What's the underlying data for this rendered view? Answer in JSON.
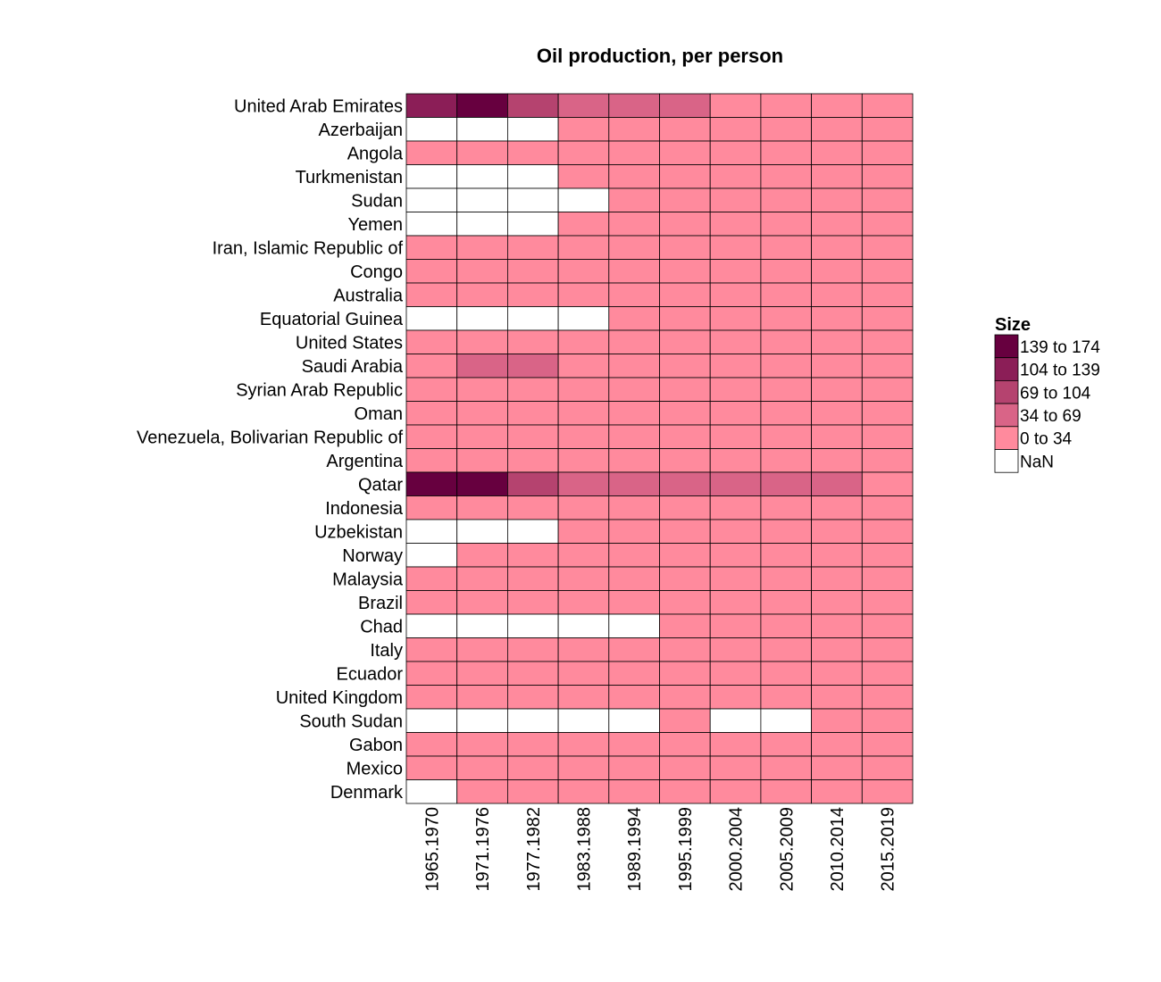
{
  "chart_data": {
    "type": "heatmap",
    "title": "Oil production, per person",
    "rows": [
      "United Arab Emirates",
      "Azerbaijan",
      "Angola",
      "Turkmenistan",
      "Sudan",
      "Yemen",
      "Iran, Islamic Republic of",
      "Congo",
      "Australia",
      "Equatorial Guinea",
      "United States",
      "Saudi Arabia",
      "Syrian Arab Republic",
      "Oman",
      "Venezuela, Bolivarian Republic of",
      "Argentina",
      "Qatar",
      "Indonesia",
      "Uzbekistan",
      "Norway",
      "Malaysia",
      "Brazil",
      "Chad",
      "Italy",
      "Ecuador",
      "United Kingdom",
      "South Sudan",
      "Gabon",
      "Mexico",
      "Denmark"
    ],
    "columns": [
      "1965.1970",
      "1971.1976",
      "1977.1982",
      "1983.1988",
      "1989.1994",
      "1995.1999",
      "2000.2004",
      "2005.2009",
      "2010.2014",
      "2015.2019"
    ],
    "bins": [
      {
        "label": "139 to 174",
        "color": "#67003f"
      },
      {
        "label": "104 to 139",
        "color": "#8b1e57"
      },
      {
        "label": "69 to 104",
        "color": "#b5436f"
      },
      {
        "label": "34 to 69",
        "color": "#d96487"
      },
      {
        "label": "0 to 34",
        "color": "#ff8a9d"
      },
      {
        "label": "NaN",
        "color": "#ffffff"
      }
    ],
    "legend_title": "Size",
    "legend_position": "right",
    "cells": [
      [
        1,
        0,
        2,
        3,
        3,
        3,
        4,
        4,
        4,
        4
      ],
      [
        5,
        5,
        5,
        4,
        4,
        4,
        4,
        4,
        4,
        4
      ],
      [
        4,
        4,
        4,
        4,
        4,
        4,
        4,
        4,
        4,
        4
      ],
      [
        5,
        5,
        5,
        4,
        4,
        4,
        4,
        4,
        4,
        4
      ],
      [
        5,
        5,
        5,
        5,
        4,
        4,
        4,
        4,
        4,
        4
      ],
      [
        5,
        5,
        5,
        4,
        4,
        4,
        4,
        4,
        4,
        4
      ],
      [
        4,
        4,
        4,
        4,
        4,
        4,
        4,
        4,
        4,
        4
      ],
      [
        4,
        4,
        4,
        4,
        4,
        4,
        4,
        4,
        4,
        4
      ],
      [
        4,
        4,
        4,
        4,
        4,
        4,
        4,
        4,
        4,
        4
      ],
      [
        5,
        5,
        5,
        5,
        4,
        4,
        4,
        4,
        4,
        4
      ],
      [
        4,
        4,
        4,
        4,
        4,
        4,
        4,
        4,
        4,
        4
      ],
      [
        4,
        3,
        3,
        4,
        4,
        4,
        4,
        4,
        4,
        4
      ],
      [
        4,
        4,
        4,
        4,
        4,
        4,
        4,
        4,
        4,
        4
      ],
      [
        4,
        4,
        4,
        4,
        4,
        4,
        4,
        4,
        4,
        4
      ],
      [
        4,
        4,
        4,
        4,
        4,
        4,
        4,
        4,
        4,
        4
      ],
      [
        4,
        4,
        4,
        4,
        4,
        4,
        4,
        4,
        4,
        4
      ],
      [
        0,
        0,
        2,
        3,
        3,
        3,
        3,
        3,
        3,
        4
      ],
      [
        4,
        4,
        4,
        4,
        4,
        4,
        4,
        4,
        4,
        4
      ],
      [
        5,
        5,
        5,
        4,
        4,
        4,
        4,
        4,
        4,
        4
      ],
      [
        5,
        4,
        4,
        4,
        4,
        4,
        4,
        4,
        4,
        4
      ],
      [
        4,
        4,
        4,
        4,
        4,
        4,
        4,
        4,
        4,
        4
      ],
      [
        4,
        4,
        4,
        4,
        4,
        4,
        4,
        4,
        4,
        4
      ],
      [
        5,
        5,
        5,
        5,
        5,
        4,
        4,
        4,
        4,
        4
      ],
      [
        4,
        4,
        4,
        4,
        4,
        4,
        4,
        4,
        4,
        4
      ],
      [
        4,
        4,
        4,
        4,
        4,
        4,
        4,
        4,
        4,
        4
      ],
      [
        4,
        4,
        4,
        4,
        4,
        4,
        4,
        4,
        4,
        4
      ],
      [
        5,
        5,
        5,
        5,
        5,
        4,
        5,
        5,
        4,
        4
      ],
      [
        4,
        4,
        4,
        4,
        4,
        4,
        4,
        4,
        4,
        4
      ],
      [
        4,
        4,
        4,
        4,
        4,
        4,
        4,
        4,
        4,
        4
      ],
      [
        5,
        4,
        4,
        4,
        4,
        4,
        4,
        4,
        4,
        4
      ]
    ]
  }
}
